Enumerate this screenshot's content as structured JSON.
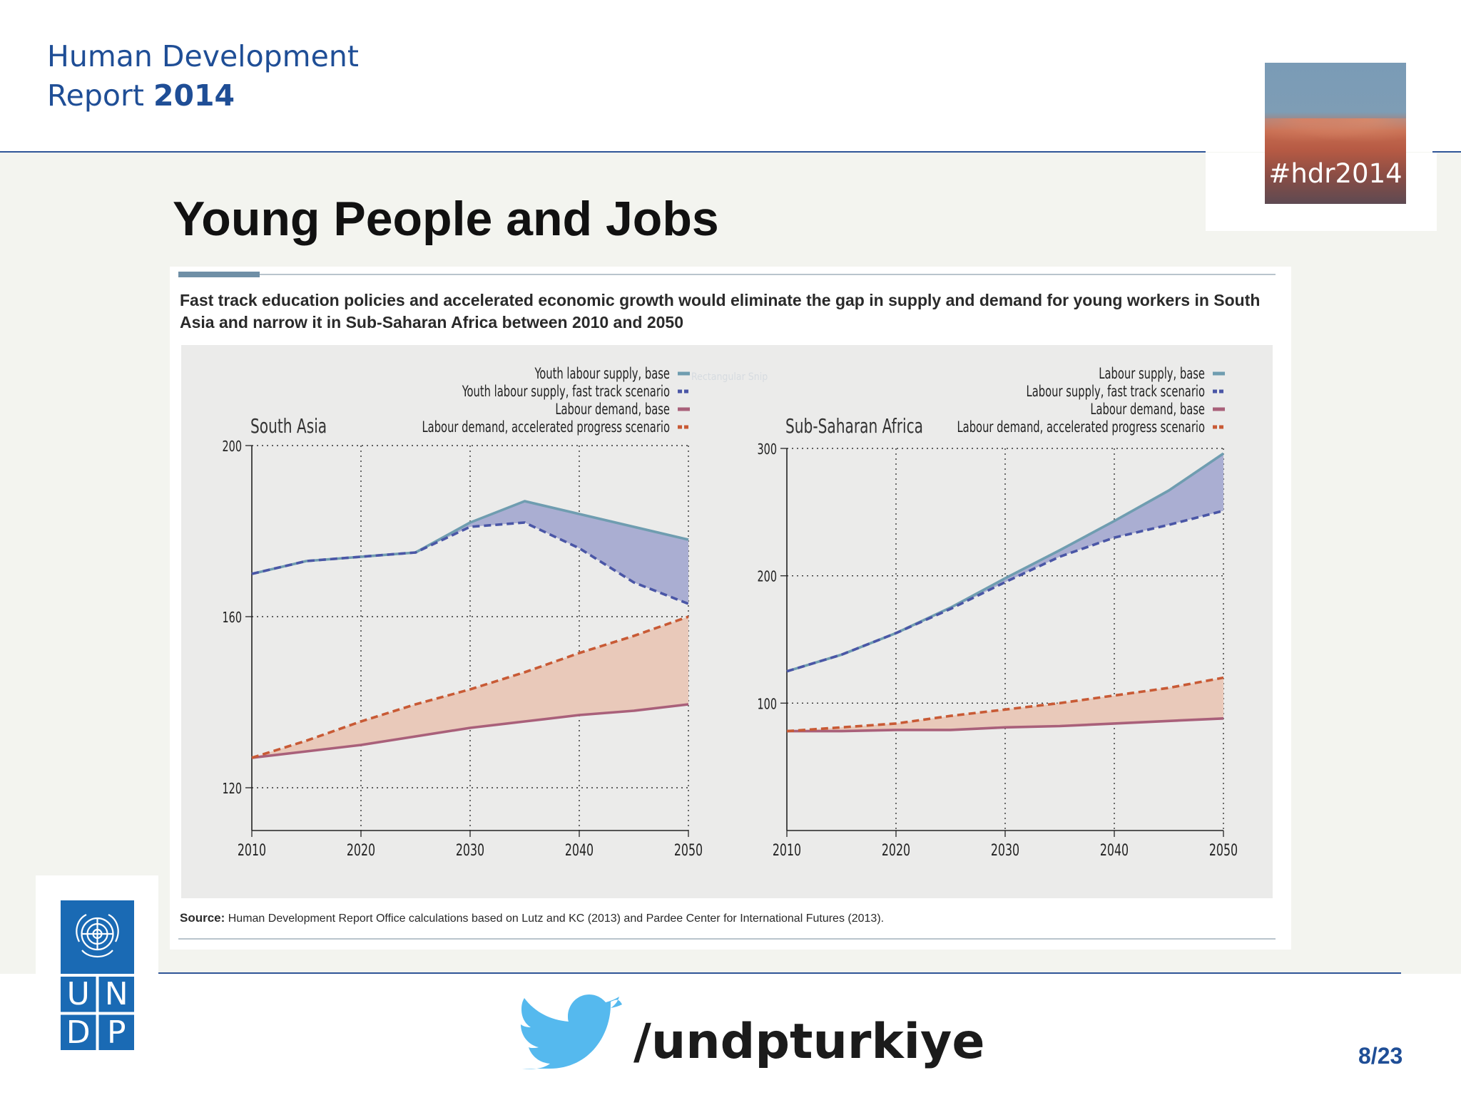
{
  "header": {
    "report_line1": "Human Development",
    "report_line2": "Report",
    "report_year": "2014",
    "hashtag": "#hdr2014"
  },
  "slide": {
    "title": "Young People and Jobs",
    "page_number": "8/23"
  },
  "figure": {
    "caption": "Fast track education policies and accelerated economic growth would eliminate the gap in supply and demand for young workers in South Asia and narrow it in Sub-Saharan Africa between 2010 and 2050",
    "source_label": "Source:",
    "source_text": "Human Development Report Office calculations based on Lutz and KC (2013) and Pardee Center for International Futures (2013).",
    "watermark": "Rectangular Snip"
  },
  "footer": {
    "twitter_handle": "/undpturkiye",
    "logo_letters": [
      "U",
      "N",
      "D",
      "P"
    ]
  },
  "colors": {
    "supply_base": "#6f9db0",
    "supply_fast": "#4a56a6",
    "demand_base": "#a9607a",
    "demand_accel": "#c85a35",
    "supply_gap_fill": "#aaaed2",
    "demand_gap_fill": "#e9c9ba",
    "undp_blue": "#1a6ab4",
    "accent_blue": "#1f4e96"
  },
  "chart_data": [
    {
      "type": "line",
      "title": "South Asia",
      "x": [
        2010,
        2015,
        2020,
        2025,
        2030,
        2035,
        2040,
        2045,
        2050
      ],
      "xticks": [
        "2010",
        "2020",
        "2030",
        "2040",
        "2050"
      ],
      "xticks_values": [
        2010,
        2020,
        2030,
        2040,
        2050
      ],
      "xlim": [
        2010,
        2050
      ],
      "ylim": [
        110,
        200
      ],
      "yticks": [
        "120",
        "160",
        "200"
      ],
      "yticks_values": [
        120,
        160,
        200
      ],
      "grid": true,
      "legend": "top-right",
      "series": [
        {
          "name": "Youth labour supply, base",
          "style": "solid",
          "color_key": "supply_base",
          "values": [
            170,
            173,
            174,
            175,
            182,
            187,
            184,
            181,
            178
          ]
        },
        {
          "name": "Youth labour supply, fast track scenario",
          "style": "dashed",
          "color_key": "supply_fast",
          "values": [
            170,
            173,
            174,
            175,
            181,
            182,
            176,
            168,
            163
          ]
        },
        {
          "name": "Labour demand, base",
          "style": "solid",
          "color_key": "demand_base",
          "values": [
            127,
            128.5,
            130,
            132,
            134,
            135.5,
            137,
            138,
            139.5
          ]
        },
        {
          "name": "Labour demand, accelerated progress scenario",
          "style": "dashed",
          "color_key": "demand_accel",
          "values": [
            127,
            131,
            135.5,
            139.5,
            143,
            147,
            151.5,
            155.5,
            160
          ]
        }
      ]
    },
    {
      "type": "line",
      "title": "Sub-Saharan Africa",
      "x": [
        2010,
        2015,
        2020,
        2025,
        2030,
        2035,
        2040,
        2045,
        2050
      ],
      "xticks": [
        "2010",
        "2020",
        "2030",
        "2040",
        "2050"
      ],
      "xticks_values": [
        2010,
        2020,
        2030,
        2040,
        2050
      ],
      "xlim": [
        2010,
        2050
      ],
      "ylim": [
        0,
        300
      ],
      "yticks": [
        "100",
        "200",
        "300"
      ],
      "yticks_values": [
        100,
        200,
        300
      ],
      "grid": true,
      "legend": "top-right",
      "series": [
        {
          "name": "Labour supply, base",
          "style": "solid",
          "color_key": "supply_base",
          "values": [
            125,
            138,
            155,
            175,
            198,
            220,
            243,
            267,
            296
          ]
        },
        {
          "name": "Labour supply, fast track scenario",
          "style": "dashed",
          "color_key": "supply_fast",
          "values": [
            125,
            138,
            155,
            174,
            195,
            215,
            230,
            240,
            251
          ]
        },
        {
          "name": "Labour demand, base",
          "style": "solid",
          "color_key": "demand_base",
          "values": [
            78,
            78,
            79,
            79,
            81,
            82,
            84,
            86,
            88
          ]
        },
        {
          "name": "Labour demand, accelerated progress scenario",
          "style": "dashed",
          "color_key": "demand_accel",
          "values": [
            78,
            81,
            84,
            90,
            95,
            100,
            106,
            112,
            120
          ]
        }
      ]
    }
  ]
}
